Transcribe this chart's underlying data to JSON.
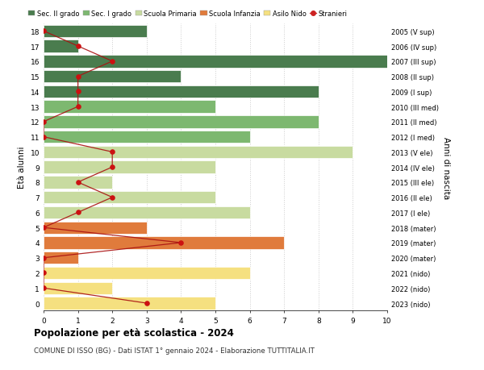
{
  "ages": [
    0,
    1,
    2,
    3,
    4,
    5,
    6,
    7,
    8,
    9,
    10,
    11,
    12,
    13,
    14,
    15,
    16,
    17,
    18
  ],
  "right_labels": [
    "2023 (nido)",
    "2022 (nido)",
    "2021 (nido)",
    "2020 (mater)",
    "2019 (mater)",
    "2018 (mater)",
    "2017 (I ele)",
    "2016 (II ele)",
    "2015 (III ele)",
    "2014 (IV ele)",
    "2013 (V ele)",
    "2012 (I med)",
    "2011 (II med)",
    "2010 (III med)",
    "2009 (I sup)",
    "2008 (II sup)",
    "2007 (III sup)",
    "2006 (IV sup)",
    "2005 (V sup)"
  ],
  "bar_values": [
    5,
    2,
    6,
    1,
    7,
    3,
    6,
    5,
    2,
    5,
    9,
    6,
    8,
    5,
    8,
    4,
    10,
    1,
    3
  ],
  "bar_colors": [
    "#f5e080",
    "#f5e080",
    "#f5e080",
    "#e07b3c",
    "#e07b3c",
    "#e07b3c",
    "#c8dba0",
    "#c8dba0",
    "#c8dba0",
    "#c8dba0",
    "#c8dba0",
    "#7db870",
    "#7db870",
    "#7db870",
    "#4a7c4e",
    "#4a7c4e",
    "#4a7c4e",
    "#4a7c4e",
    "#4a7c4e"
  ],
  "stranieri_values": [
    3,
    0,
    0,
    0,
    4,
    0,
    1,
    2,
    1,
    2,
    2,
    0,
    0,
    1,
    1,
    1,
    2,
    1,
    0
  ],
  "legend_labels": [
    "Sec. II grado",
    "Sec. I grado",
    "Scuola Primaria",
    "Scuola Infanzia",
    "Asilo Nido",
    "Stranieri"
  ],
  "legend_colors": [
    "#4a7c4e",
    "#7db870",
    "#c8dba0",
    "#e07b3c",
    "#f5e080",
    "#cc2222"
  ],
  "title": "Popolazione per età scolastica - 2024",
  "subtitle": "COMUNE DI ISSO (BG) - Dati ISTAT 1° gennaio 2024 - Elaborazione TUTTITALIA.IT",
  "ylabel": "Età alunni",
  "right_ylabel": "Anni di nascita",
  "xlim": [
    0,
    10
  ],
  "background_color": "#ffffff",
  "grid_color": "#cccccc"
}
